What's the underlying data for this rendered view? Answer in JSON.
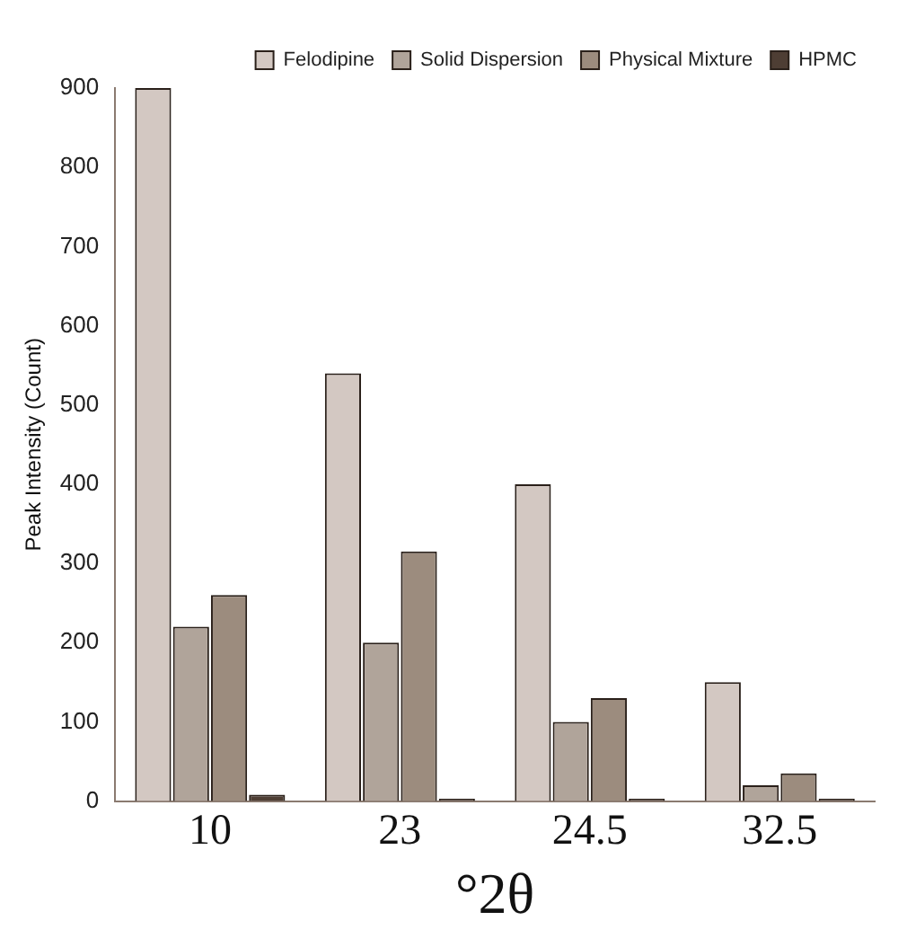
{
  "chart_data": {
    "type": "bar",
    "xlabel": "°2θ",
    "ylabel": "Peak Intensity (Count)",
    "categories": [
      "10",
      "23",
      "24.5",
      "32.5"
    ],
    "series": [
      {
        "name": "Felodipine",
        "color": "#d3c8c2",
        "values": [
          900,
          540,
          400,
          150
        ]
      },
      {
        "name": "Solid Dispersion",
        "color": "#b0a49a",
        "values": [
          220,
          200,
          100,
          20
        ]
      },
      {
        "name": "Physical Mixture",
        "color": "#9c8c7e",
        "values": [
          260,
          315,
          130,
          35
        ]
      },
      {
        "name": "HPMC",
        "color": "#4e3e34",
        "values": [
          8,
          3,
          3,
          3
        ]
      }
    ],
    "ylim": [
      0,
      900
    ],
    "yticks": [
      0,
      100,
      200,
      300,
      400,
      500,
      600,
      700,
      800,
      900
    ],
    "grid": false,
    "legend": "top right"
  }
}
